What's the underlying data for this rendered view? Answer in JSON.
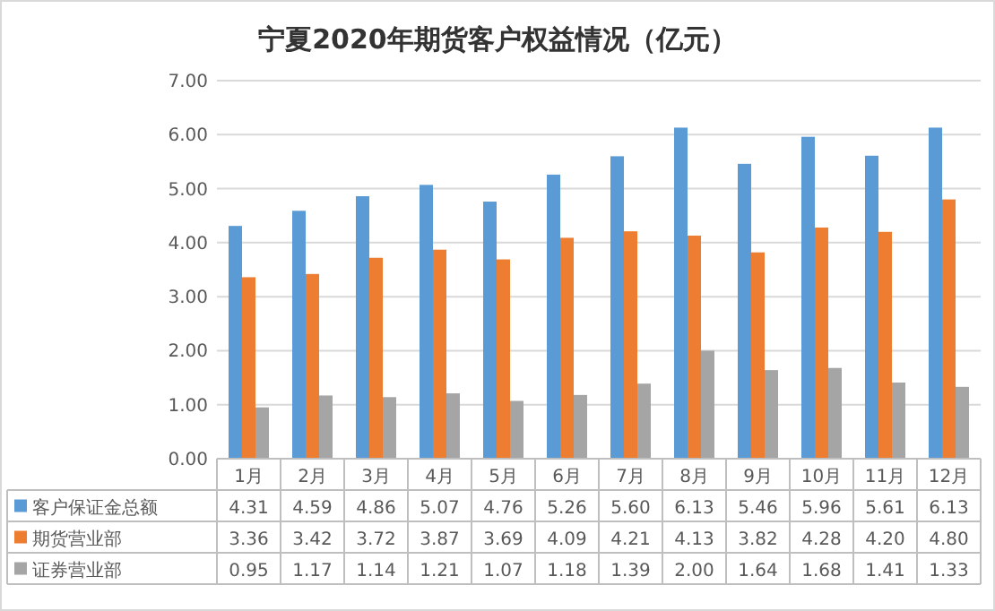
{
  "chart_data": {
    "type": "bar",
    "title": "宁夏2020年期货客户权益情况（亿元）",
    "categories": [
      "1月",
      "2月",
      "3月",
      "4月",
      "5月",
      "6月",
      "7月",
      "8月",
      "9月",
      "10月",
      "11月",
      "12月"
    ],
    "series": [
      {
        "name": "客户保证金总额",
        "color": "#5b9bd5",
        "values": [
          4.31,
          4.59,
          4.86,
          5.07,
          4.76,
          5.26,
          5.6,
          6.13,
          5.46,
          5.96,
          5.61,
          6.13
        ],
        "value_labels": [
          "4.31",
          "4.59",
          "4.86",
          "5.07",
          "4.76",
          "5.26",
          "5.60",
          "6.13",
          "5.46",
          "5.96",
          "5.61",
          "6.13"
        ]
      },
      {
        "name": "期货营业部",
        "color": "#ed7d31",
        "values": [
          3.36,
          3.42,
          3.72,
          3.87,
          3.69,
          4.09,
          4.21,
          4.13,
          3.82,
          4.28,
          4.2,
          4.8
        ],
        "value_labels": [
          "3.36",
          "3.42",
          "3.72",
          "3.87",
          "3.69",
          "4.09",
          "4.21",
          "4.13",
          "3.82",
          "4.28",
          "4.20",
          "4.80"
        ]
      },
      {
        "name": "证券营业部",
        "color": "#a5a5a5",
        "values": [
          0.95,
          1.17,
          1.14,
          1.21,
          1.07,
          1.18,
          1.39,
          2.0,
          1.64,
          1.68,
          1.41,
          1.33
        ],
        "value_labels": [
          "0.95",
          "1.17",
          "1.14",
          "1.21",
          "1.07",
          "1.18",
          "1.39",
          "2.00",
          "1.64",
          "1.68",
          "1.41",
          "1.33"
        ]
      }
    ],
    "ylim": [
      0,
      7
    ],
    "yticks": [
      {
        "value": 0,
        "label": "0.00"
      },
      {
        "value": 1,
        "label": "1.00"
      },
      {
        "value": 2,
        "label": "2.00"
      },
      {
        "value": 3,
        "label": "3.00"
      },
      {
        "value": 4,
        "label": "4.00"
      },
      {
        "value": 5,
        "label": "5.00"
      },
      {
        "value": 6,
        "label": "6.00"
      },
      {
        "value": 7,
        "label": "7.00"
      }
    ],
    "grid": "y",
    "legend": "bottom"
  }
}
